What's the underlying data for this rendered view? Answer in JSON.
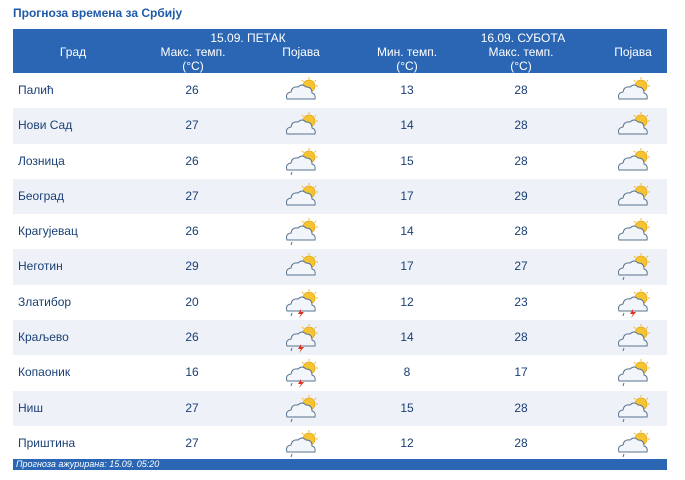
{
  "title": "Прогноза времена за Србију",
  "header": {
    "day1": "15.09. ПЕТАК",
    "day2": "16.09. СУБОТА",
    "city": "Град",
    "max1": "Макс. темп.",
    "unit1": "(°C)",
    "cond1": "Појава",
    "min2": "Мин. темп.",
    "unit2": "(°C)",
    "max2": "Макс. темп.",
    "unit3": "(°C)",
    "cond2": "Појава"
  },
  "rows": [
    {
      "city": "Палић",
      "max1": "26",
      "icon1": "partly-cloudy-sun-icon",
      "min2": "13",
      "max2": "28",
      "icon2": "partly-cloudy-sun-icon"
    },
    {
      "city": "Нови Сад",
      "max1": "27",
      "icon1": "partly-cloudy-sun-icon",
      "min2": "14",
      "max2": "28",
      "icon2": "partly-cloudy-sun-icon"
    },
    {
      "city": "Лозница",
      "max1": "26",
      "icon1": "cloud-sun-light-rain-icon",
      "min2": "15",
      "max2": "28",
      "icon2": "partly-cloudy-sun-icon"
    },
    {
      "city": "Београд",
      "max1": "27",
      "icon1": "cloud-sun-icon",
      "min2": "17",
      "max2": "29",
      "icon2": "partly-cloudy-sun-icon"
    },
    {
      "city": "Крагујевац",
      "max1": "26",
      "icon1": "cloud-sun-light-rain-icon",
      "min2": "14",
      "max2": "28",
      "icon2": "cloud-sun-icon"
    },
    {
      "city": "Неготин",
      "max1": "29",
      "icon1": "partly-cloudy-sun-icon",
      "min2": "17",
      "max2": "27",
      "icon2": "cloud-sun-light-rain-icon"
    },
    {
      "city": "Златибор",
      "max1": "20",
      "icon1": "cloud-sun-thunderstorm-icon",
      "min2": "12",
      "max2": "23",
      "icon2": "cloud-sun-thunderstorm-icon"
    },
    {
      "city": "Краљево",
      "max1": "26",
      "icon1": "cloud-sun-thunderstorm-icon",
      "min2": "14",
      "max2": "28",
      "icon2": "cloud-sun-light-rain-icon"
    },
    {
      "city": "Копаоник",
      "max1": "16",
      "icon1": "cloud-sun-thunderstorm-icon",
      "min2": "8",
      "max2": "17",
      "icon2": "cloud-sun-light-rain-icon"
    },
    {
      "city": "Ниш",
      "max1": "27",
      "icon1": "cloud-sun-light-rain-icon",
      "min2": "15",
      "max2": "28",
      "icon2": "cloud-sun-light-rain-icon"
    },
    {
      "city": "Приштина",
      "max1": "27",
      "icon1": "cloud-sun-light-rain-icon",
      "min2": "12",
      "max2": "28",
      "icon2": "cloud-sun-light-rain-icon"
    }
  ],
  "footer": "Прогноза ажурирана:  15.09. 05:20",
  "colors": {
    "header": "#2a66b3",
    "text": "#1a3f74",
    "row_alt": "#eef2f8",
    "title": "#1f5aa8"
  }
}
